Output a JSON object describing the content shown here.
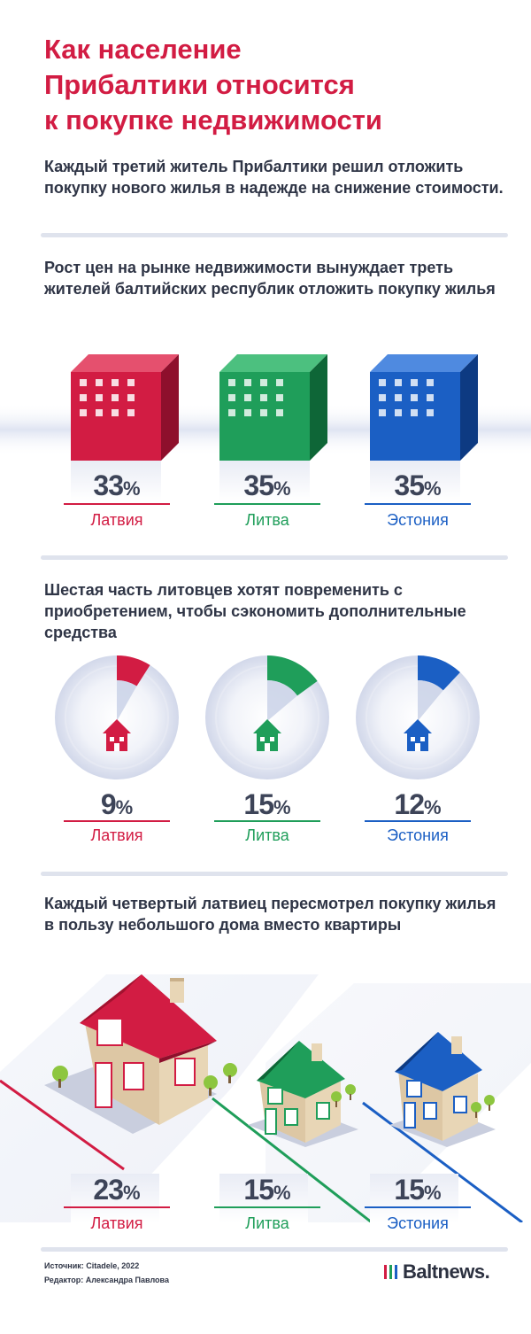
{
  "title_lines": [
    "Как население",
    "Прибалтики относится",
    "к покупке недвижимости"
  ],
  "subtitle": "Каждый третий житель Прибалтики решил отложить покупку нового жилья в надежде на снижение стоимости.",
  "colors": {
    "latvia": "#d21c43",
    "lithuania": "#1f9e5a",
    "estonia": "#1b5fc4",
    "text": "#2f3546",
    "divider": "#dfe3ed"
  },
  "pct_sign": "%",
  "chart_data": [
    {
      "type": "bar",
      "title": "Рост цен на рынке недвижимости вынуждает треть жителей балтийских республик отложить покупку жилья",
      "categories": [
        "Латвия",
        "Литва",
        "Эстония"
      ],
      "values": [
        33,
        35,
        35
      ],
      "unit": "%"
    },
    {
      "type": "pie",
      "title": "Шестая часть литовцев хотят повременить с приобретением, чтобы сэкономить дополнительные средства",
      "categories": [
        "Латвия",
        "Литва",
        "Эстония"
      ],
      "values": [
        9,
        15,
        12
      ],
      "unit": "%"
    },
    {
      "type": "bar",
      "title": "Каждый четвертый латвиец пересмотрел покупку жилья в пользу небольшого дома вместо квартиры",
      "categories": [
        "Латвия",
        "Литва",
        "Эстония"
      ],
      "values": [
        23,
        15,
        15
      ],
      "unit": "%"
    }
  ],
  "footer": {
    "source": "Источник: Citadele, 2022",
    "editor": "Редактор: Александра Павлова"
  },
  "brand": {
    "name": "Baltnews.",
    "bar_colors": [
      "#d21c43",
      "#1f9e5a",
      "#1b5fc4"
    ]
  }
}
